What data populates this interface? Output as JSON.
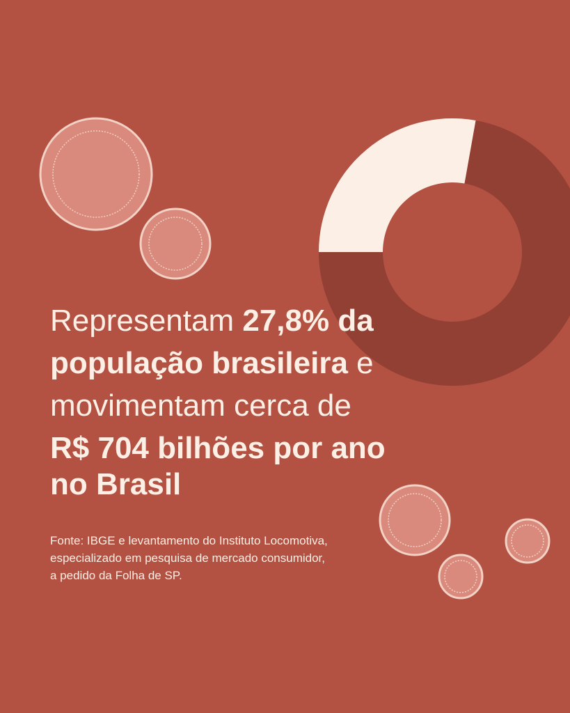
{
  "chart_data": {
    "type": "pie",
    "values": [
      27.8,
      72.2
    ],
    "colors": [
      "#fcefe5",
      "#923f34"
    ]
  },
  "headline": [
    [
      {
        "text": "Representam ",
        "bold": false
      },
      {
        "text": "27,8% da",
        "bold": true
      }
    ],
    [
      {
        "text": "população brasileira",
        "bold": true
      },
      {
        "text": " e",
        "bold": false
      }
    ],
    [
      {
        "text": "movimentam cerca de",
        "bold": false
      }
    ],
    [
      {
        "text": "R$ 704 bilhões por ano",
        "bold": true
      }
    ],
    [
      {
        "text": "no Brasil",
        "bold": true
      }
    ]
  ],
  "source": [
    "Fonte: IBGE e levantamento do Instituto Locomotiva,",
    "especializado em pesquisa de mercado consumidor,",
    "a pedido da Folha de SP."
  ]
}
